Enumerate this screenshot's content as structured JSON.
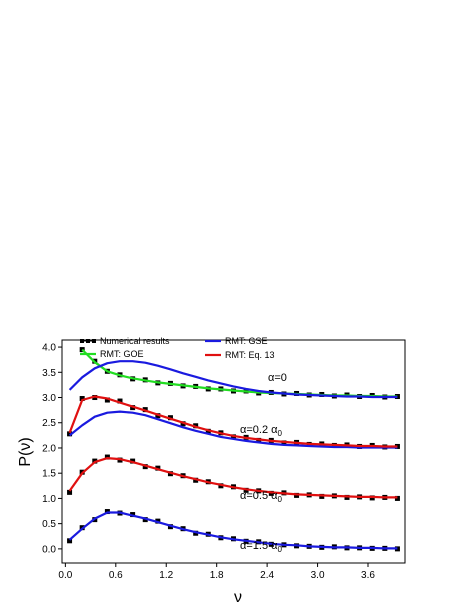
{
  "chart_data": {
    "type": "line",
    "x_label": "ν",
    "y_label": "P(ν)",
    "xlim": [
      -0.04,
      4.04
    ],
    "ylim": [
      -0.28,
      4.14
    ],
    "xticks": [
      {
        "value": 0,
        "label": "0.0"
      },
      {
        "value": 0.6,
        "label": "0.6"
      },
      {
        "value": 1.2,
        "label": "1.2"
      },
      {
        "value": 1.8,
        "label": "1.8"
      },
      {
        "value": 2.4,
        "label": "2.4"
      },
      {
        "value": 3.0,
        "label": "3.0"
      },
      {
        "value": 3.6,
        "label": "3.6"
      }
    ],
    "yticks": [
      {
        "value": 0,
        "label": "0.0"
      },
      {
        "value": 0.5,
        "label": "0.5"
      },
      {
        "value": 1.0,
        "label": "1.0"
      },
      {
        "value": 1.5,
        "label": "1.5"
      },
      {
        "value": 2.0,
        "label": "2.0"
      },
      {
        "value": 2.5,
        "label": "2.5"
      },
      {
        "value": 3.0,
        "label": "3.0"
      },
      {
        "value": 3.5,
        "label": "3.5"
      },
      {
        "value": 4.0,
        "label": "4.0"
      }
    ],
    "x": [
      0.05,
      0.2,
      0.35,
      0.5,
      0.65,
      0.8,
      0.95,
      1.1,
      1.25,
      1.4,
      1.55,
      1.7,
      1.85,
      2.0,
      2.15,
      2.3,
      2.45,
      2.6,
      2.75,
      2.9,
      3.05,
      3.2,
      3.35,
      3.5,
      3.65,
      3.8,
      3.95
    ],
    "series": [
      {
        "name": "Numerical results",
        "color": "#000000",
        "line_style": "none",
        "markers": true,
        "values": [
          0.16,
          0.42,
          0.58,
          0.74,
          0.71,
          0.68,
          0.58,
          0.55,
          0.44,
          0.4,
          0.31,
          0.29,
          0.22,
          0.2,
          0.15,
          0.14,
          0.09,
          0.08,
          0.06,
          0.05,
          0.03,
          0.04,
          0.02,
          0.02,
          0.01,
          0.01,
          0.0
        ]
      },
      {
        "name": "Numerical results",
        "color": "#000000",
        "line_style": "none",
        "markers": true,
        "values": [
          1.12,
          1.52,
          1.74,
          1.82,
          1.76,
          1.74,
          1.63,
          1.6,
          1.49,
          1.45,
          1.36,
          1.33,
          1.25,
          1.23,
          1.16,
          1.15,
          1.1,
          1.11,
          1.06,
          1.07,
          1.04,
          1.05,
          1.02,
          1.03,
          1.01,
          1.02,
          1.0
        ]
      },
      {
        "name": "Numerical results",
        "color": "#000000",
        "line_style": "none",
        "markers": true,
        "values": [
          2.28,
          2.98,
          3.0,
          2.95,
          2.93,
          2.8,
          2.76,
          2.64,
          2.6,
          2.48,
          2.44,
          2.33,
          2.3,
          2.22,
          2.21,
          2.15,
          2.15,
          2.1,
          2.11,
          2.07,
          2.08,
          2.05,
          2.06,
          2.03,
          2.05,
          2.02,
          2.03
        ]
      },
      {
        "name": "Numerical results",
        "color": "#000000",
        "line_style": "dashed",
        "markers": true,
        "values": [
          null,
          3.95,
          3.72,
          3.52,
          3.45,
          3.37,
          3.35,
          3.29,
          3.28,
          3.23,
          3.22,
          3.17,
          3.17,
          3.13,
          3.13,
          3.09,
          3.1,
          3.07,
          3.08,
          3.05,
          3.06,
          3.03,
          3.05,
          3.02,
          3.04,
          3.01,
          3.02
        ]
      },
      {
        "name": "RMT: GOE",
        "color": "#22dd22",
        "line_style": "solid",
        "markers": false,
        "values": [
          null,
          3.95,
          3.7,
          3.52,
          3.44,
          3.38,
          3.34,
          3.3,
          3.27,
          3.24,
          3.21,
          3.18,
          3.16,
          3.14,
          3.12,
          3.1,
          3.09,
          3.08,
          3.07,
          3.06,
          3.05,
          3.04,
          3.04,
          3.03,
          3.03,
          3.02,
          3.02
        ]
      },
      {
        "name": "RMT: GSE",
        "color": "#1a1adf",
        "line_style": "solid",
        "markers": false,
        "values": [
          0.18,
          0.4,
          0.6,
          0.72,
          0.72,
          0.66,
          0.6,
          0.53,
          0.46,
          0.39,
          0.33,
          0.28,
          0.23,
          0.19,
          0.16,
          0.13,
          0.1,
          0.08,
          0.07,
          0.05,
          0.04,
          0.03,
          0.03,
          0.02,
          0.02,
          0.01,
          0.01
        ]
      },
      {
        "name": "RMT: GSE",
        "color": "#1a1adf",
        "line_style": "solid",
        "markers": false,
        "values": [
          2.25,
          2.45,
          2.62,
          2.7,
          2.72,
          2.7,
          2.65,
          2.57,
          2.49,
          2.41,
          2.34,
          2.28,
          2.22,
          2.18,
          2.14,
          2.11,
          2.08,
          2.06,
          2.05,
          2.04,
          2.03,
          2.02,
          2.02,
          2.01,
          2.01,
          2.01,
          2.01
        ]
      },
      {
        "name": "RMT: GSE",
        "color": "#1a1adf",
        "line_style": "solid",
        "markers": false,
        "values": [
          3.15,
          3.4,
          3.58,
          3.68,
          3.72,
          3.72,
          3.69,
          3.63,
          3.56,
          3.48,
          3.41,
          3.34,
          3.28,
          3.22,
          3.17,
          3.13,
          3.1,
          3.08,
          3.06,
          3.05,
          3.04,
          3.03,
          3.02,
          3.02,
          3.01,
          3.01,
          3.01
        ]
      },
      {
        "name": "RMT: Eq. 13",
        "color": "#e01010",
        "line_style": "solid",
        "markers": false,
        "values": [
          1.15,
          1.5,
          1.72,
          1.8,
          1.78,
          1.72,
          1.65,
          1.58,
          1.51,
          1.44,
          1.38,
          1.32,
          1.27,
          1.22,
          1.18,
          1.15,
          1.12,
          1.1,
          1.08,
          1.07,
          1.06,
          1.05,
          1.04,
          1.03,
          1.03,
          1.02,
          1.02
        ]
      },
      {
        "name": "RMT: Eq. 13",
        "color": "#e01010",
        "line_style": "solid",
        "markers": false,
        "values": [
          2.3,
          2.95,
          3.02,
          2.98,
          2.9,
          2.82,
          2.74,
          2.66,
          2.58,
          2.5,
          2.42,
          2.35,
          2.29,
          2.24,
          2.2,
          2.17,
          2.14,
          2.12,
          2.1,
          2.08,
          2.07,
          2.06,
          2.05,
          2.04,
          2.04,
          2.03,
          2.03
        ]
      }
    ],
    "annotations": [
      {
        "text": "α=0"
      },
      {
        "text": "α=0.2 α",
        "sub": "0"
      },
      {
        "text": "α=0.5 α",
        "sub": "0"
      },
      {
        "text": "α=1.5 α",
        "sub": "0"
      }
    ]
  }
}
